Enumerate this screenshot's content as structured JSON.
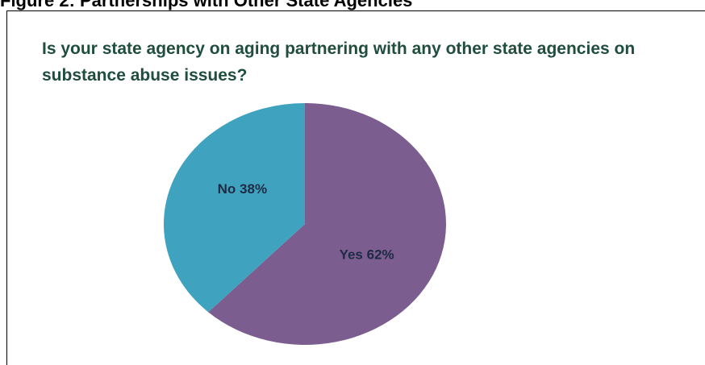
{
  "figure_heading": "Figure 2: Partnerships with Other State Agencies",
  "colors": {
    "title": "#1f4e3d",
    "label": "#1f2a44",
    "yes_slice": "#7b5e8f",
    "no_slice": "#3fa3c0"
  },
  "chart_data": {
    "type": "pie",
    "title": "Is your state agency on aging partnering with any other state agencies on substance abuse issues?",
    "categories": [
      "No",
      "Yes"
    ],
    "values": [
      38,
      62
    ],
    "labels": [
      "No 38%",
      "Yes 62%"
    ],
    "start": "12 o'clock",
    "direction": "clockwise, Yes first"
  }
}
